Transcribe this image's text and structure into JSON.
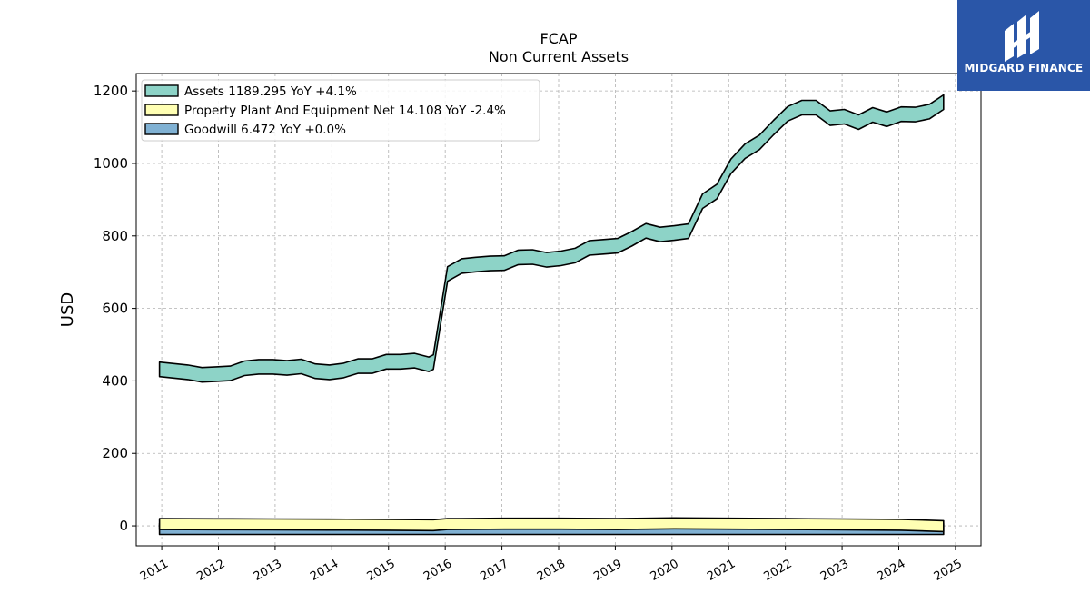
{
  "header": {
    "ticker": "FCAP",
    "subtitle": "Non Current  Assets"
  },
  "brand": {
    "name": "MIDGARD FINANCE",
    "color": "#2a56a8"
  },
  "chart_data": {
    "type": "area",
    "ylabel": "USD",
    "xlabel": "",
    "xlim": [
      2010.55,
      2025.45
    ],
    "ylim": [
      -55,
      1248
    ],
    "yticks": [
      0,
      200,
      400,
      600,
      800,
      1000,
      1200
    ],
    "xticks": [
      "2011",
      "2012",
      "2013",
      "2014",
      "2015",
      "2016",
      "2017",
      "2018",
      "2019",
      "2020",
      "2021",
      "2022",
      "2023",
      "2024",
      "2025"
    ],
    "grid": true,
    "legend_position": "top-left",
    "series": [
      {
        "name": "Assets",
        "legend": "Assets  1189.295 YoY +4.1%",
        "color": "#8dd3c7",
        "band": 16,
        "x": [
          2010.96,
          2011.21,
          2011.46,
          2011.71,
          2011.96,
          2012.21,
          2012.46,
          2012.71,
          2012.96,
          2013.21,
          2013.46,
          2013.71,
          2013.96,
          2014.21,
          2014.46,
          2014.71,
          2014.96,
          2015.21,
          2015.46,
          2015.71,
          2015.79,
          2016.04,
          2016.29,
          2016.54,
          2016.79,
          2017.04,
          2017.29,
          2017.54,
          2017.79,
          2018.04,
          2018.29,
          2018.54,
          2018.79,
          2019.04,
          2019.29,
          2019.54,
          2019.79,
          2020.04,
          2020.29,
          2020.54,
          2020.79,
          2021.04,
          2021.29,
          2021.54,
          2021.79,
          2022.04,
          2022.29,
          2022.54,
          2022.79,
          2023.04,
          2023.29,
          2023.54,
          2023.79,
          2024.04,
          2024.29,
          2024.54,
          2024.79
        ],
        "values": [
          452,
          448,
          444,
          437,
          439,
          441,
          455,
          459,
          459,
          456,
          460,
          447,
          444,
          449,
          461,
          461,
          473,
          473,
          476,
          466,
          472,
          715,
          737,
          741,
          744,
          745,
          761,
          762,
          754,
          758,
          766,
          787,
          790,
          793,
          812,
          834,
          824,
          828,
          833,
          916,
          942,
          1012,
          1054,
          1078,
          1119,
          1157,
          1174,
          1174,
          1145,
          1149,
          1134,
          1154,
          1142,
          1156,
          1155,
          1163,
          1189
        ]
      },
      {
        "name": "Property Plant And Equipment Net",
        "legend": "Property Plant And Equipment Net  14.108 YoY -2.4%",
        "color": "#ffffb3",
        "x": [
          2010.96,
          2011.96,
          2012.96,
          2013.96,
          2014.96,
          2015.79,
          2016.04,
          2017.04,
          2018.04,
          2019.04,
          2020.04,
          2021.04,
          2022.04,
          2023.04,
          2024.04,
          2024.79
        ],
        "values": [
          20,
          19.5,
          19,
          18.5,
          18,
          17,
          20,
          21,
          21,
          20,
          22,
          21,
          20,
          19,
          18,
          14.1
        ]
      },
      {
        "name": "Goodwill",
        "legend": "Goodwill  6.472 YoY +0.0%",
        "color": "#80b1d3",
        "x": [
          2010.96,
          2015.79,
          2016.04,
          2024.79
        ],
        "values": [
          6.472,
          6.472,
          6.472,
          6.472
        ]
      }
    ]
  }
}
